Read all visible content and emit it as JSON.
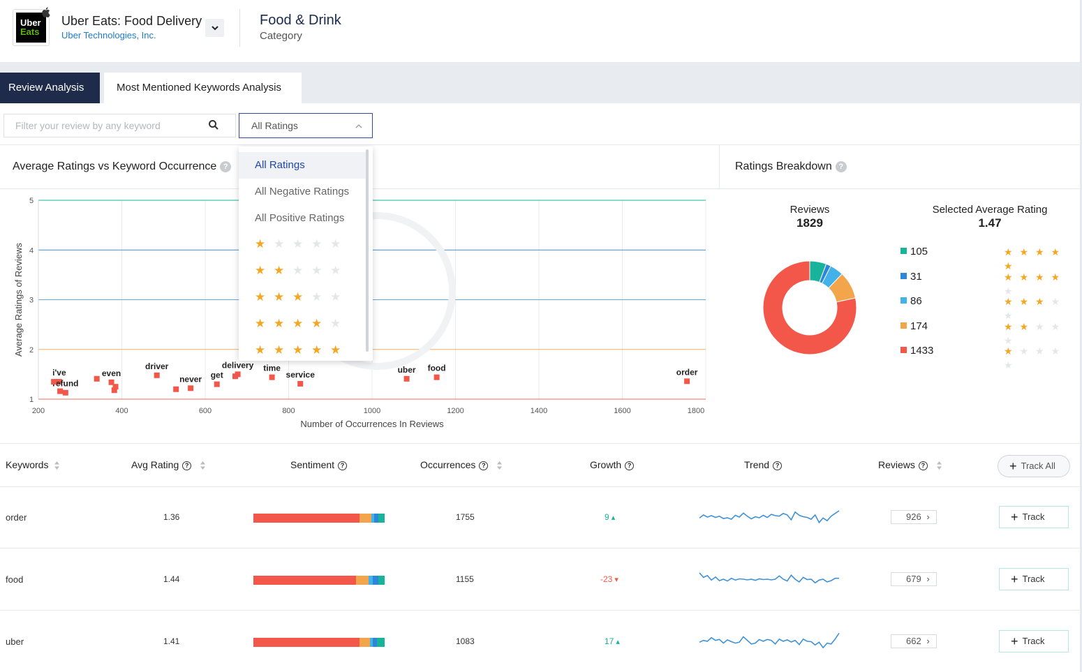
{
  "app": {
    "icon_text_1": "Uber",
    "icon_text_2": "Eats",
    "title": "Uber Eats: Food Delivery",
    "developer": "Uber Technologies, Inc.",
    "category_title": "Food & Drink",
    "category_label": "Category"
  },
  "tabs": [
    {
      "label": "Review Analysis",
      "active": true
    },
    {
      "label": "Most Mentioned Keywords Analysis",
      "active": false
    }
  ],
  "search": {
    "placeholder": "Filter your review by any keyword",
    "value": ""
  },
  "rating_filter": {
    "selected": "All Ratings",
    "options": [
      "All Ratings",
      "All Negative Ratings",
      "All Positive Ratings"
    ],
    "star_options": [
      1,
      2,
      3,
      4,
      5
    ]
  },
  "panels": {
    "scatter_title": "Average Ratings vs Keyword Occurrence",
    "breakdown_title": "Ratings Breakdown",
    "help": "?"
  },
  "chart_data": [
    {
      "type": "scatter",
      "xlabel": "Number of Occurrences In Reviews",
      "ylabel": "Average Ratings of Reviews",
      "xlim": [
        200,
        1800
      ],
      "ylim": [
        1,
        5
      ],
      "x_ticks": [
        200,
        400,
        600,
        800,
        1000,
        1200,
        1400,
        1600,
        1800
      ],
      "y_ticks": [
        1,
        2,
        3,
        4,
        5
      ],
      "reference_lines": [
        {
          "y": 5,
          "color": "#1ab394"
        },
        {
          "y": 4,
          "color": "#3a8fd8"
        },
        {
          "y": 3,
          "color": "#5aabe0"
        },
        {
          "y": 2,
          "color": "#f5b063"
        },
        {
          "y": 1,
          "color": "#f06a5c"
        }
      ],
      "point_color": "#f2574a",
      "points": [
        {
          "label": "i've",
          "x": 250,
          "y": 1.35
        },
        {
          "label": "refund",
          "x": 265,
          "y": 1.13
        },
        {
          "label": "",
          "x": 237,
          "y": 1.35
        },
        {
          "label": "",
          "x": 252,
          "y": 1.16
        },
        {
          "label": "",
          "x": 340,
          "y": 1.41
        },
        {
          "label": "even",
          "x": 375,
          "y": 1.34
        },
        {
          "label": "",
          "x": 385,
          "y": 1.25
        },
        {
          "label": "",
          "x": 382,
          "y": 1.18
        },
        {
          "label": "driver",
          "x": 484,
          "y": 1.48
        },
        {
          "label": "never",
          "x": 565,
          "y": 1.22
        },
        {
          "label": "",
          "x": 530,
          "y": 1.2
        },
        {
          "label": "get",
          "x": 628,
          "y": 1.3
        },
        {
          "label": "delivery",
          "x": 678,
          "y": 1.5
        },
        {
          "label": "",
          "x": 672,
          "y": 1.46
        },
        {
          "label": "time",
          "x": 760,
          "y": 1.44
        },
        {
          "label": "service",
          "x": 828,
          "y": 1.31
        },
        {
          "label": "uber",
          "x": 1083,
          "y": 1.41
        },
        {
          "label": "food",
          "x": 1155,
          "y": 1.44
        },
        {
          "label": "order",
          "x": 1755,
          "y": 1.36
        }
      ]
    },
    {
      "type": "pie",
      "title": "Reviews",
      "total": "1829",
      "categories": [
        "5 stars",
        "4 stars",
        "3 stars",
        "2 stars",
        "1 star"
      ],
      "values": [
        105,
        31,
        86,
        174,
        1433
      ],
      "colors": [
        "#17b39a",
        "#2e86d9",
        "#42b2e8",
        "#f2a54a",
        "#f2574a"
      ]
    }
  ],
  "breakdown": {
    "reviews_label": "Reviews",
    "reviews_total": "1829",
    "avg_label": "Selected Average Rating",
    "avg_value": "1.47",
    "rows": [
      {
        "count": "105",
        "stars": 5,
        "color": "#17b39a"
      },
      {
        "count": "31",
        "stars": 4,
        "color": "#2e86d9"
      },
      {
        "count": "86",
        "stars": 3,
        "color": "#42b2e8"
      },
      {
        "count": "174",
        "stars": 2,
        "color": "#f2a54a"
      },
      {
        "count": "1433",
        "stars": 1,
        "color": "#f2574a"
      }
    ]
  },
  "table": {
    "headers": {
      "keywords": "Keywords",
      "avg_rating": "Avg Rating",
      "sentiment": "Sentiment",
      "occurrences": "Occurrences",
      "growth": "Growth",
      "trend": "Trend",
      "reviews": "Reviews",
      "track_all": "Track All"
    },
    "rows": [
      {
        "keyword": "order",
        "avg": "1.36",
        "occurrences": "1755",
        "growth": "9",
        "growth_dir": "up",
        "reviews": "926",
        "track": "Track",
        "sentiment": [
          0.81,
          0.09,
          0.02,
          0.03,
          0.05
        ],
        "trend": [
          0.45,
          0.62,
          0.5,
          0.58,
          0.48,
          0.55,
          0.42,
          0.46,
          0.38,
          0.6,
          0.5,
          0.72,
          0.55,
          0.4,
          0.52,
          0.46,
          0.6,
          0.48,
          0.65,
          0.58,
          0.55,
          0.7,
          0.62,
          0.35,
          0.78,
          0.6,
          0.52,
          0.48,
          0.38,
          0.62,
          0.2,
          0.45,
          0.3,
          0.55,
          0.7,
          0.85
        ]
      },
      {
        "keyword": "food",
        "avg": "1.44",
        "occurrences": "1155",
        "growth": "-23",
        "growth_dir": "down",
        "reviews": "679",
        "track": "Track",
        "sentiment": [
          0.78,
          0.1,
          0.03,
          0.04,
          0.05
        ],
        "trend": [
          0.85,
          0.6,
          0.7,
          0.45,
          0.62,
          0.42,
          0.5,
          0.4,
          0.55,
          0.45,
          0.52,
          0.5,
          0.46,
          0.5,
          0.44,
          0.52,
          0.48,
          0.5,
          0.46,
          0.5,
          0.68,
          0.5,
          0.4,
          0.72,
          0.5,
          0.35,
          0.6,
          0.48,
          0.5,
          0.3,
          0.45,
          0.5,
          0.35,
          0.42,
          0.55,
          0.55
        ]
      },
      {
        "keyword": "uber",
        "avg": "1.41",
        "occurrences": "1083",
        "growth": "17",
        "growth_dir": "up",
        "reviews": "662",
        "track": "Track",
        "sentiment": [
          0.81,
          0.08,
          0.02,
          0.03,
          0.06
        ],
        "trend": [
          0.45,
          0.55,
          0.5,
          0.7,
          0.55,
          0.6,
          0.4,
          0.58,
          0.48,
          0.4,
          0.45,
          0.75,
          0.55,
          0.35,
          0.4,
          0.6,
          0.5,
          0.6,
          0.55,
          0.35,
          0.62,
          0.5,
          0.58,
          0.46,
          0.55,
          0.32,
          0.62,
          0.5,
          0.48,
          0.3,
          0.45,
          0.15,
          0.4,
          0.35,
          0.62,
          0.95
        ]
      }
    ]
  },
  "colors": {
    "navy": "#1f2b4a",
    "link_blue": "#1e7ac8",
    "up_green": "#17b39a",
    "down_red": "#f2574a",
    "trend_line": "#3e92d8",
    "star_gold": "#f5a623"
  },
  "icons": [
    "apple-icon",
    "chevron-down-icon",
    "search-icon",
    "chevron-up-icon",
    "help-icon",
    "sort-icon",
    "plus-icon",
    "chevron-right-icon",
    "star-icon"
  ]
}
